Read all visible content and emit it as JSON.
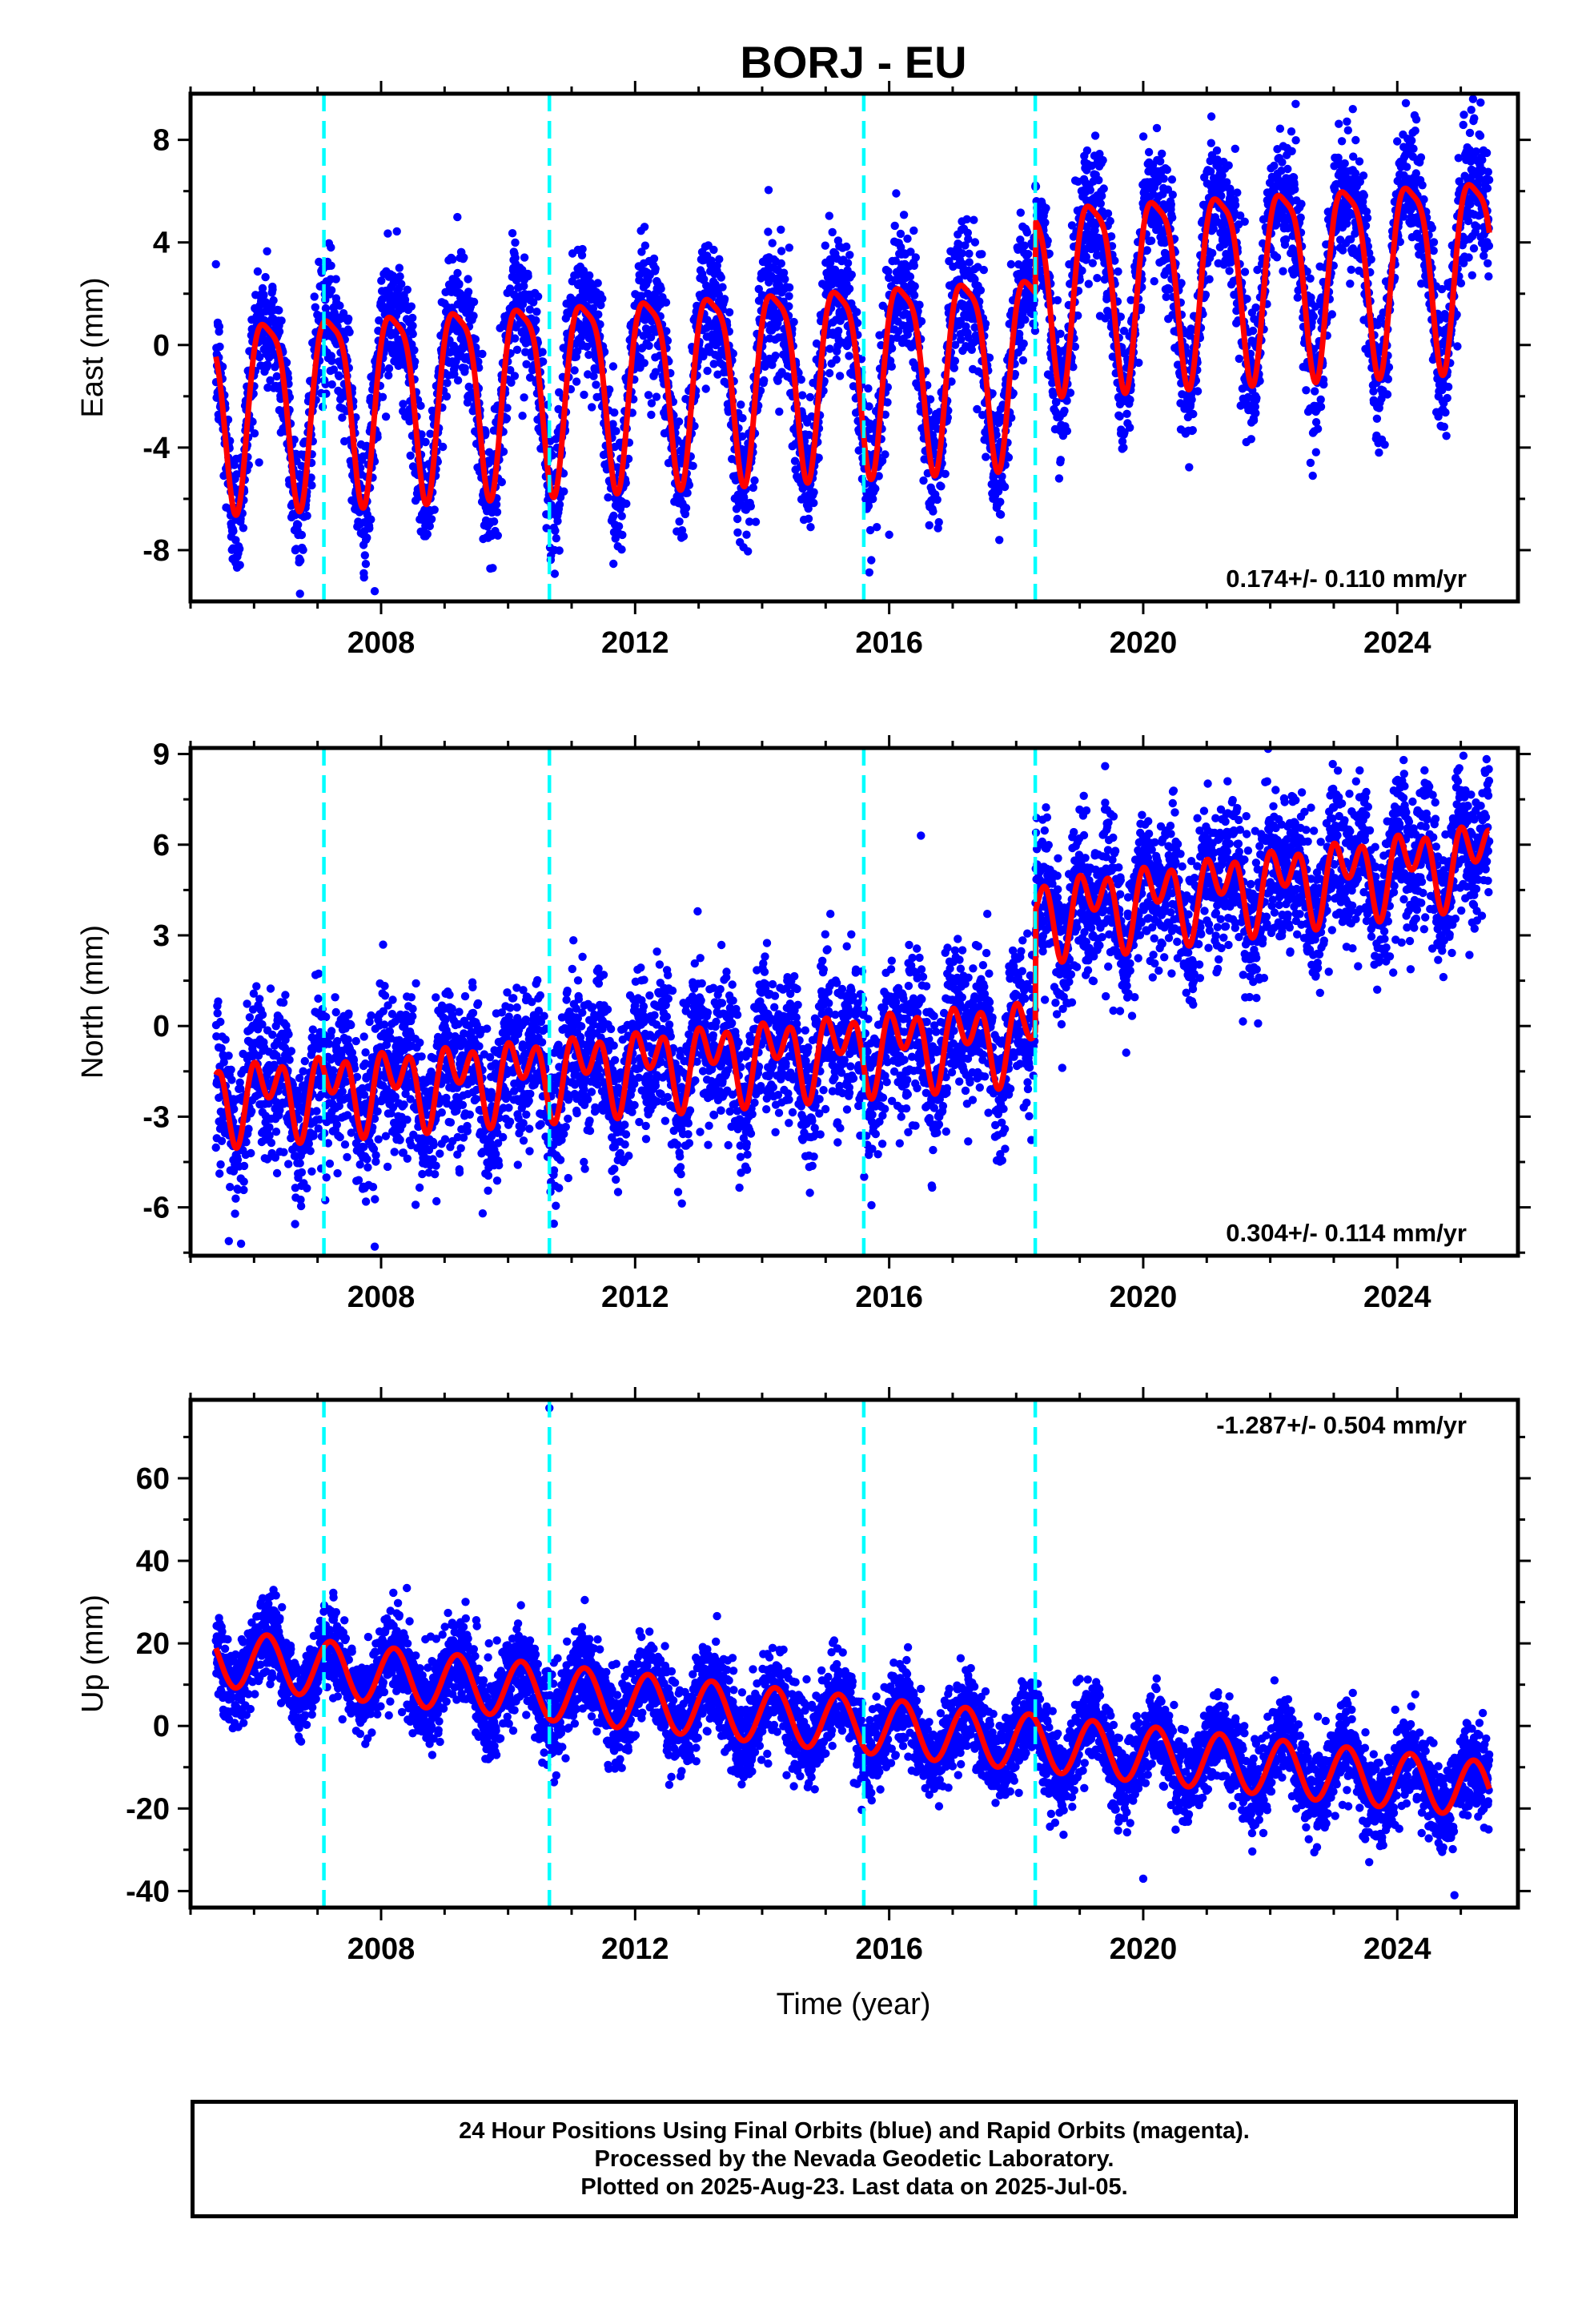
{
  "title": "BORJ - EU",
  "xlabel": "Time (year)",
  "footer": {
    "line1": "24 Hour Positions Using Final Orbits (blue) and Rapid Orbits (magenta).",
    "line2": "Processed by the Nevada Geodetic Laboratory.",
    "line3": "Plotted on 2025-Aug-23. Last data on 2025-Jul-05."
  },
  "colors": {
    "points": "#0000ff",
    "fit": "#ff0000",
    "steps": "#00ffff",
    "frame": "#000000"
  },
  "chart_data": [
    {
      "type": "scatter",
      "component": "east",
      "ylabel": "East (mm)",
      "xlim": [
        2005.0,
        2025.9
      ],
      "ylim": [
        -10,
        9.8
      ],
      "yticks": [
        -8,
        -4,
        0,
        4,
        8
      ],
      "xticks": [
        2008,
        2012,
        2016,
        2020,
        2024
      ],
      "steps": [
        2007.1,
        2010.65,
        2015.6,
        2018.3
      ],
      "rate_label": "0.174+/- 0.110 mm/yr",
      "rate_position": "bottom-right",
      "fit_model": {
        "start": 2005.4,
        "end": 2025.45,
        "annual_amplitude": 3.6,
        "semiannual_amplitude": 0.9,
        "offsets": [
          {
            "from": 2005.4,
            "to": 2018.3,
            "base_start": -2.2,
            "base_end": -0.4
          },
          {
            "from": 2018.3,
            "to": 2025.45,
            "base_start": 2.4,
            "base_end": 3.4
          }
        ]
      },
      "scatter_sigma": 1.3,
      "outliers": [
        [
          2007.9,
          -9.6
        ],
        [
          2016.0,
          -7.4
        ],
        [
          2013.9,
          -6.9
        ],
        [
          2022.4,
          9.4
        ],
        [
          2023.3,
          9.2
        ]
      ]
    },
    {
      "type": "scatter",
      "component": "north",
      "ylabel": "North (mm)",
      "xlim": [
        2005.0,
        2025.9
      ],
      "ylim": [
        -7.6,
        9.2
      ],
      "yticks": [
        -6,
        -3,
        0,
        3,
        6,
        9
      ],
      "xticks": [
        2008,
        2012,
        2016,
        2020,
        2024
      ],
      "steps": [
        2007.1,
        2010.65,
        2015.6,
        2018.3
      ],
      "rate_label": "0.304+/- 0.114 mm/yr",
      "rate_position": "bottom-right",
      "fit_model": {
        "start": 2005.4,
        "end": 2025.45,
        "annual_amplitude": 0.8,
        "semiannual_amplitude": 0.9,
        "offsets": [
          {
            "from": 2005.4,
            "to": 2018.3,
            "base_start": -2.4,
            "base_end": -0.3
          },
          {
            "from": 2018.3,
            "to": 2025.45,
            "base_start": 3.7,
            "base_end": 5.6
          }
        ]
      },
      "scatter_sigma": 1.2,
      "outliers": [
        [
          2007.9,
          -7.3
        ],
        [
          2016.5,
          6.3
        ],
        [
          2024.1,
          8.8
        ],
        [
          2019.4,
          8.6
        ]
      ]
    },
    {
      "type": "scatter",
      "component": "up",
      "ylabel": "Up (mm)",
      "xlim": [
        2005.0,
        2025.9
      ],
      "ylim": [
        -44,
        79
      ],
      "yticks": [
        -40,
        -20,
        0,
        20,
        40,
        60
      ],
      "xticks": [
        2008,
        2012,
        2016,
        2020,
        2024
      ],
      "steps": [
        2007.1,
        2010.65,
        2015.6,
        2018.3
      ],
      "rate_label": "-1.287+/- 0.504 mm/yr",
      "rate_position": "top-right",
      "fit_model": {
        "start": 2005.4,
        "end": 2025.45,
        "annual_amplitude": 6.8,
        "semiannual_amplitude": 0.0,
        "offsets": [
          {
            "from": 2005.4,
            "to": 2025.45,
            "base_start": 16.5,
            "base_end": -15.5
          }
        ]
      },
      "scatter_sigma": 5.2,
      "outliers": [
        [
          2010.65,
          77
        ],
        [
          2020.0,
          -37
        ],
        [
          2024.9,
          -41
        ],
        [
          2023.3,
          8
        ]
      ]
    }
  ]
}
